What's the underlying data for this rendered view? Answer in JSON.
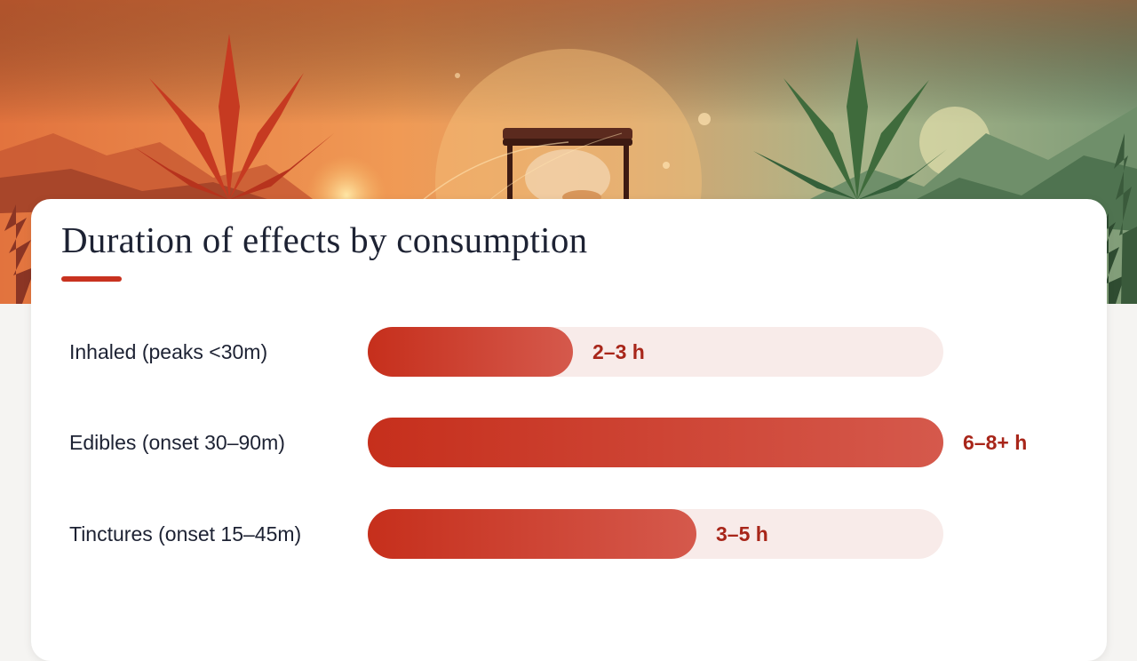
{
  "hero": {
    "image": "cannabis-leaves-hourglass-sunset"
  },
  "chart_data": {
    "type": "bar",
    "orientation": "horizontal",
    "title": "Duration of effects by consumption",
    "categories": [
      "Inhaled (peaks <30m)",
      "Edibles (onset 30–90m)",
      "Tinctures (onset 15–45m)"
    ],
    "values": [
      2.5,
      7.0,
      4.0
    ],
    "value_labels": [
      "2–3 h",
      "6–8+ h",
      "3–5 h"
    ],
    "xlim": [
      0,
      7
    ],
    "grid": false,
    "colors": {
      "bar_start": "#c62f1c",
      "bar_end": "#d5594c",
      "track": "#f8ebe9",
      "value_text": "#a8261a"
    }
  }
}
